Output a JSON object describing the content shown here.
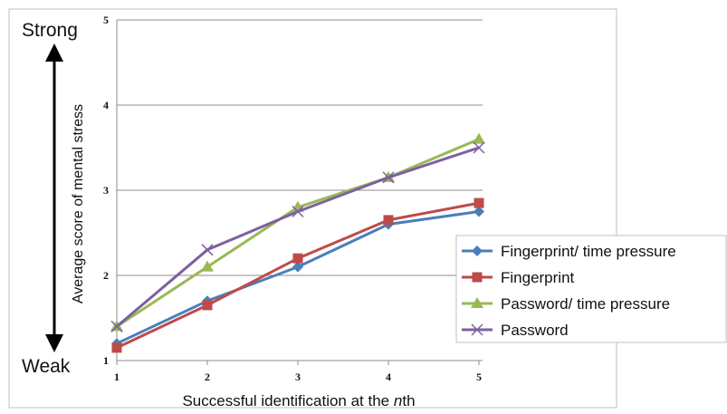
{
  "chart_data": {
    "type": "line",
    "title": "",
    "xlabel": "Successful identification at the nth",
    "ylabel": "Average score of mental stress",
    "ylim": [
      1,
      5
    ],
    "yticks": [
      1,
      2,
      3,
      4,
      5
    ],
    "categories": [
      1,
      2,
      3,
      4,
      5
    ],
    "grid": "horizontal",
    "legend_position": "right",
    "series": [
      {
        "name": "Fingerprint/ time pressure",
        "values": [
          1.2,
          1.7,
          2.1,
          2.6,
          2.75
        ],
        "color": "#4a7ebb",
        "marker": "diamond"
      },
      {
        "name": "Fingerprint",
        "values": [
          1.15,
          1.65,
          2.2,
          2.65,
          2.85
        ],
        "color": "#be4b48",
        "marker": "square"
      },
      {
        "name": "Password/ time pressure",
        "values": [
          1.4,
          2.1,
          2.8,
          3.15,
          3.6
        ],
        "color": "#98b954",
        "marker": "triangle"
      },
      {
        "name": "Password",
        "values": [
          1.4,
          2.3,
          2.75,
          3.15,
          3.5
        ],
        "color": "#7d60a0",
        "marker": "x"
      }
    ],
    "annotations": {
      "strong_label": "Strong",
      "weak_label": "Weak"
    }
  }
}
